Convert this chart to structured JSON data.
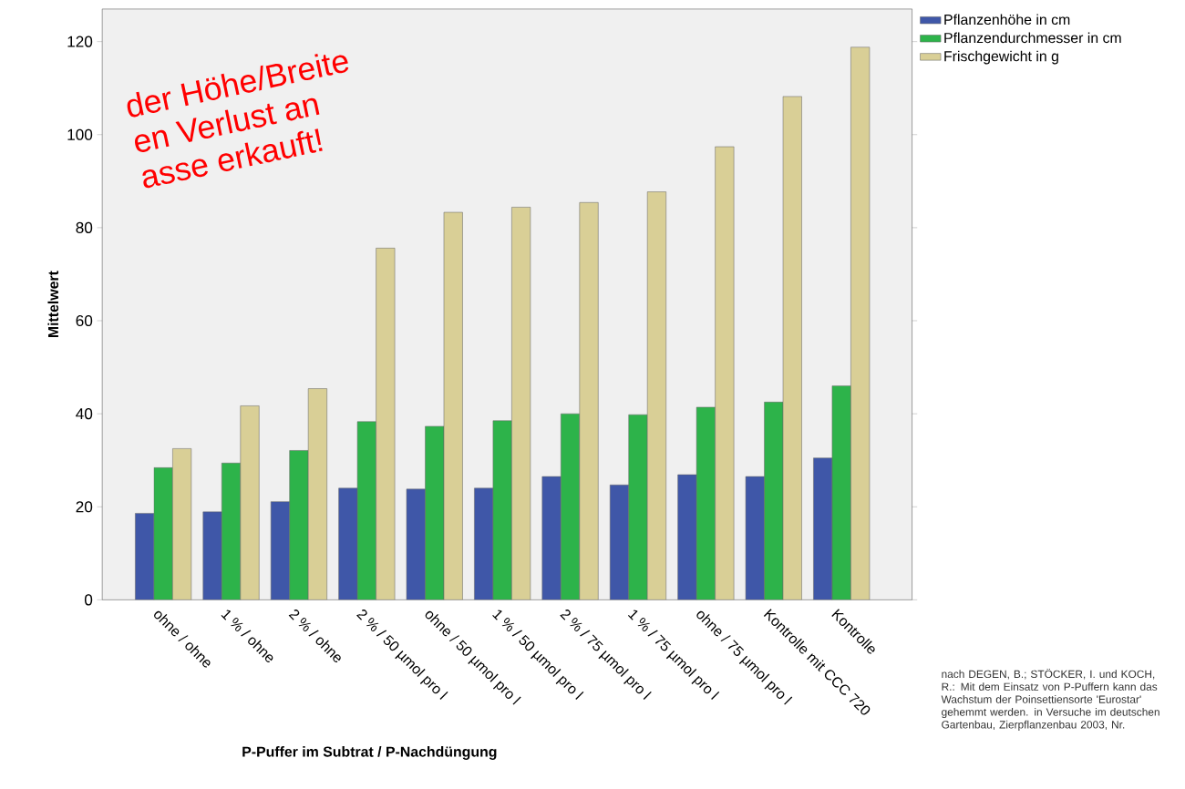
{
  "chart_data": {
    "type": "bar",
    "xlabel": "P-Puffer im Subtrat / P-Nachdüngung",
    "ylabel": "Mittelwert",
    "categories": [
      "ohne / ohne",
      "1 % / ohne",
      "2 % / ohne",
      "2 % / 50 µmol pro l",
      "ohne / 50 µmol pro l",
      "1 % / 50 µmol pro l",
      "2 % / 75 µmol pro l",
      "1 % / 75 µmol pro l",
      "ohne / 75 µmol pro l",
      "Kontrolle mit CCC 720",
      "Kontrolle"
    ],
    "series": [
      {
        "name": "Pflanzenhöhe in cm",
        "color": "#3f57a8",
        "values": [
          18.6,
          18.9,
          21.1,
          24.0,
          23.8,
          24.0,
          26.5,
          24.7,
          26.9,
          26.5,
          30.5
        ]
      },
      {
        "name": "Pflanzendurchmesser in cm",
        "color": "#2db34a",
        "values": [
          28.4,
          29.4,
          32.1,
          38.3,
          37.3,
          38.5,
          40.0,
          39.8,
          41.4,
          42.5,
          46.0
        ]
      },
      {
        "name": "Frischgewicht in g",
        "color": "#d9cf96",
        "values": [
          32.5,
          41.7,
          45.4,
          75.6,
          83.3,
          84.4,
          85.4,
          87.7,
          97.4,
          108.2,
          118.8
        ]
      }
    ],
    "ylim": [
      0,
      127
    ],
    "yticks": [
      0,
      20,
      40,
      60,
      80,
      100,
      120
    ],
    "grid": false,
    "legend": "right",
    "annotations": [
      "nach DEGEN, B.; STÖCKER, I. und KOCH, R.: Mit dem Einsatz von P-Puffern kann das Wachstum der Poinsettiensorte 'Eurostar' gehemmt werden. in Versuche im deutschen Gartenbau, Zierpflanzenbau 2003, Nr.",
      "der Höhe/Breite",
      "en Verlust an",
      "asse erkauft!"
    ]
  }
}
